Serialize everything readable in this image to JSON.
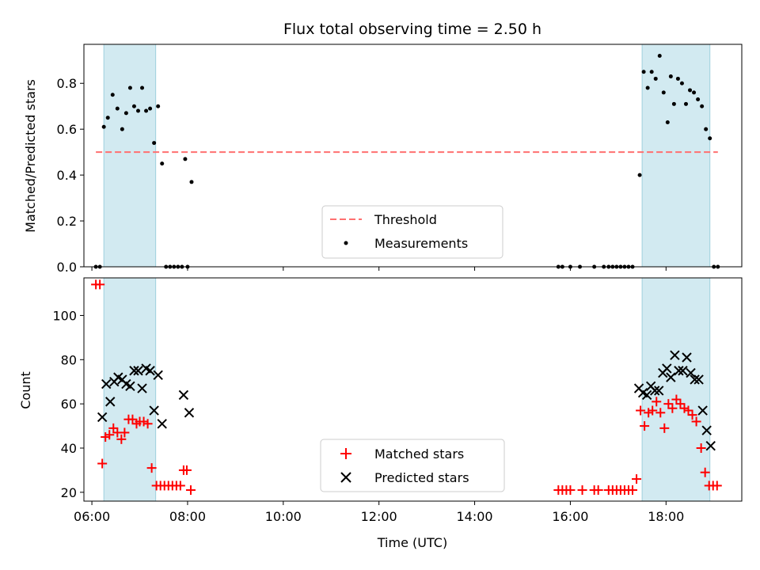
{
  "chart_data": [
    {
      "type": "scatter",
      "title": "Flux total observing time = 2.50 h",
      "xlabel": "",
      "ylabel": "Matched/Predicted stars",
      "xlim": [
        "05:50",
        "19:35"
      ],
      "ylim": [
        0,
        0.97
      ],
      "yticks": [
        0.0,
        0.2,
        0.4,
        0.6,
        0.8
      ],
      "ytick_labels": [
        "0.0",
        "0.2",
        "0.4",
        "0.6",
        "0.8"
      ],
      "xticks": [
        "06:00",
        "08:00",
        "10:00",
        "12:00",
        "14:00",
        "16:00",
        "18:00"
      ],
      "shaded_intervals": [
        [
          "06:15",
          "07:20"
        ],
        [
          "17:30",
          "18:55"
        ]
      ],
      "shade_color": "#add8e6",
      "legend": {
        "placement": "lower-center",
        "entries": [
          "Threshold",
          "Measurements"
        ]
      },
      "series": [
        {
          "name": "Threshold",
          "kind": "dashed-line",
          "color": "#ff7070",
          "x": [
            "06:05",
            "19:05"
          ],
          "y": [
            0.5,
            0.5
          ]
        },
        {
          "name": "Measurements",
          "kind": "dots",
          "color": "#000000",
          "points": [
            [
              "06:05",
              0
            ],
            [
              "06:10",
              0
            ],
            [
              "06:15",
              0.61
            ],
            [
              "06:20",
              0.65
            ],
            [
              "06:26",
              0.75
            ],
            [
              "06:32",
              0.69
            ],
            [
              "06:38",
              0.6
            ],
            [
              "06:43",
              0.67
            ],
            [
              "06:48",
              0.78
            ],
            [
              "06:53",
              0.7
            ],
            [
              "06:58",
              0.68
            ],
            [
              "07:03",
              0.78
            ],
            [
              "07:08",
              0.68
            ],
            [
              "07:13",
              0.69
            ],
            [
              "07:18",
              0.54
            ],
            [
              "07:23",
              0.7
            ],
            [
              "07:28",
              0.45
            ],
            [
              "07:33",
              0
            ],
            [
              "07:38",
              0
            ],
            [
              "07:43",
              0
            ],
            [
              "07:48",
              0
            ],
            [
              "07:53",
              0
            ],
            [
              "07:57",
              0.47
            ],
            [
              "08:00",
              0
            ],
            [
              "08:05",
              0.37
            ],
            [
              "15:45",
              0
            ],
            [
              "15:50",
              0
            ],
            [
              "16:00",
              0
            ],
            [
              "16:12",
              0
            ],
            [
              "16:30",
              0
            ],
            [
              "16:42",
              0
            ],
            [
              "16:48",
              0
            ],
            [
              "16:53",
              0
            ],
            [
              "16:58",
              0
            ],
            [
              "17:03",
              0
            ],
            [
              "17:08",
              0
            ],
            [
              "17:13",
              0
            ],
            [
              "17:18",
              0
            ],
            [
              "17:27",
              0.4
            ],
            [
              "17:32",
              0.85
            ],
            [
              "17:37",
              0.78
            ],
            [
              "17:42",
              0.85
            ],
            [
              "17:47",
              0.82
            ],
            [
              "17:52",
              0.92
            ],
            [
              "17:57",
              0.76
            ],
            [
              "18:02",
              0.63
            ],
            [
              "18:06",
              0.83
            ],
            [
              "18:10",
              0.71
            ],
            [
              "18:15",
              0.82
            ],
            [
              "18:20",
              0.8
            ],
            [
              "18:25",
              0.71
            ],
            [
              "18:30",
              0.77
            ],
            [
              "18:35",
              0.76
            ],
            [
              "18:40",
              0.73
            ],
            [
              "18:45",
              0.7
            ],
            [
              "18:50",
              0.6
            ],
            [
              "18:55",
              0.56
            ],
            [
              "19:00",
              0
            ],
            [
              "19:05",
              0
            ]
          ]
        }
      ]
    },
    {
      "type": "scatter",
      "title": "",
      "xlabel": "Time (UTC)",
      "ylabel": "Count",
      "xlim": [
        "05:50",
        "19:35"
      ],
      "ylim": [
        16,
        117
      ],
      "yticks": [
        20,
        40,
        60,
        80,
        100
      ],
      "ytick_labels": [
        "20",
        "40",
        "60",
        "80",
        "100"
      ],
      "xticks": [
        "06:00",
        "08:00",
        "10:00",
        "12:00",
        "14:00",
        "16:00",
        "18:00"
      ],
      "xtick_labels": [
        "06:00",
        "08:00",
        "10:00",
        "12:00",
        "14:00",
        "16:00",
        "18:00"
      ],
      "shaded_intervals": [
        [
          "06:15",
          "07:20"
        ],
        [
          "17:30",
          "18:55"
        ]
      ],
      "shade_color": "#add8e6",
      "legend": {
        "placement": "lower-center",
        "entries": [
          "Matched stars",
          "Predicted stars"
        ]
      },
      "series": [
        {
          "name": "Matched stars",
          "marker": "plus",
          "color": "#ff0000",
          "points": [
            [
              "06:05",
              114
            ],
            [
              "06:10",
              114
            ],
            [
              "06:13",
              33
            ],
            [
              "06:17",
              45
            ],
            [
              "06:22",
              46
            ],
            [
              "06:27",
              49
            ],
            [
              "06:32",
              47
            ],
            [
              "06:37",
              44
            ],
            [
              "06:41",
              47
            ],
            [
              "06:46",
              53
            ],
            [
              "06:51",
              53
            ],
            [
              "06:56",
              51
            ],
            [
              "07:00",
              52
            ],
            [
              "07:05",
              52
            ],
            [
              "07:10",
              51
            ],
            [
              "07:15",
              31
            ],
            [
              "07:21",
              23
            ],
            [
              "07:26",
              23
            ],
            [
              "07:31",
              23
            ],
            [
              "07:36",
              23
            ],
            [
              "07:41",
              23
            ],
            [
              "07:46",
              23
            ],
            [
              "07:51",
              23
            ],
            [
              "07:55",
              30
            ],
            [
              "07:59",
              30
            ],
            [
              "08:04",
              21
            ],
            [
              "15:45",
              21
            ],
            [
              "15:50",
              21
            ],
            [
              "15:55",
              21
            ],
            [
              "16:00",
              21
            ],
            [
              "16:15",
              21
            ],
            [
              "16:30",
              21
            ],
            [
              "16:35",
              21
            ],
            [
              "16:48",
              21
            ],
            [
              "16:53",
              21
            ],
            [
              "16:58",
              21
            ],
            [
              "17:03",
              21
            ],
            [
              "17:08",
              21
            ],
            [
              "17:13",
              21
            ],
            [
              "17:18",
              21
            ],
            [
              "17:23",
              26
            ],
            [
              "17:28",
              57
            ],
            [
              "17:33",
              50
            ],
            [
              "17:38",
              56
            ],
            [
              "17:43",
              57
            ],
            [
              "17:48",
              61
            ],
            [
              "17:53",
              56
            ],
            [
              "17:58",
              49
            ],
            [
              "18:03",
              60
            ],
            [
              "18:08",
              58
            ],
            [
              "18:13",
              62
            ],
            [
              "18:18",
              60
            ],
            [
              "18:23",
              58
            ],
            [
              "18:28",
              57
            ],
            [
              "18:33",
              55
            ],
            [
              "18:38",
              52
            ],
            [
              "18:44",
              40
            ],
            [
              "18:49",
              29
            ],
            [
              "18:54",
              23
            ],
            [
              "18:59",
              23
            ],
            [
              "19:04",
              23
            ]
          ]
        },
        {
          "name": "Predicted stars",
          "marker": "x",
          "color": "#000000",
          "points": [
            [
              "06:13",
              54
            ],
            [
              "06:18",
              69
            ],
            [
              "06:23",
              61
            ],
            [
              "06:28",
              70
            ],
            [
              "06:33",
              72
            ],
            [
              "06:38",
              71
            ],
            [
              "06:43",
              69
            ],
            [
              "06:48",
              68
            ],
            [
              "06:53",
              75
            ],
            [
              "06:58",
              75
            ],
            [
              "07:03",
              67
            ],
            [
              "07:08",
              76
            ],
            [
              "07:13",
              75
            ],
            [
              "07:18",
              57
            ],
            [
              "07:23",
              73
            ],
            [
              "07:28",
              51
            ],
            [
              "07:55",
              64
            ],
            [
              "08:02",
              56
            ],
            [
              "17:26",
              67
            ],
            [
              "17:31",
              65
            ],
            [
              "17:36",
              64
            ],
            [
              "17:41",
              68
            ],
            [
              "17:46",
              66
            ],
            [
              "17:51",
              66
            ],
            [
              "17:56",
              74
            ],
            [
              "18:01",
              76
            ],
            [
              "18:06",
              72
            ],
            [
              "18:11",
              82
            ],
            [
              "18:16",
              75
            ],
            [
              "18:21",
              75
            ],
            [
              "18:26",
              81
            ],
            [
              "18:31",
              74
            ],
            [
              "18:36",
              71
            ],
            [
              "18:41",
              71
            ],
            [
              "18:46",
              57
            ],
            [
              "18:51",
              48
            ],
            [
              "18:56",
              41
            ]
          ]
        }
      ]
    }
  ]
}
